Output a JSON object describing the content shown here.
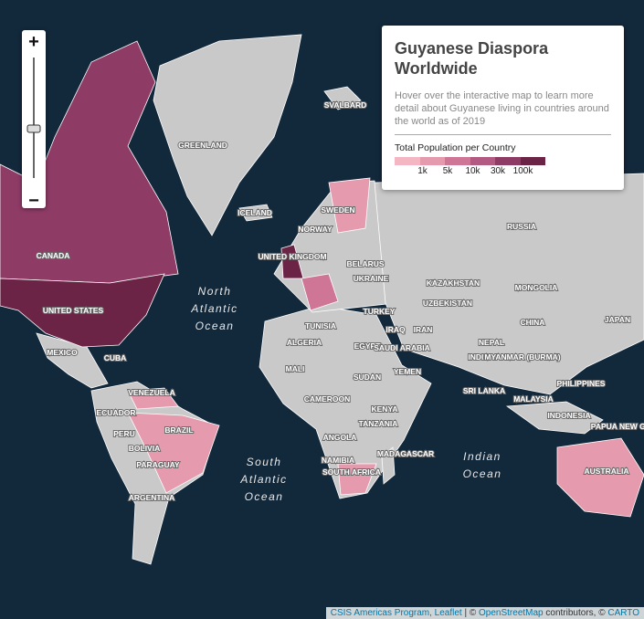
{
  "panel": {
    "title": "Guyanese Diaspora Worldwide",
    "description": "Hover over the interactive map to learn more detail about Guyanese living in countries around the world as of 2019",
    "legend": {
      "title": "Total Population per Country",
      "colors": [
        "#f4b6c2",
        "#e59aae",
        "#cf7596",
        "#b35a82",
        "#8e3b66",
        "#6b2446"
      ],
      "labels": [
        "1k",
        "5k",
        "10k",
        "30k",
        "100k"
      ]
    }
  },
  "zoom": {
    "in": "+",
    "out": "−"
  },
  "country_labels": [
    "SVALBARD",
    "GREENLAND",
    "ICELAND",
    "RUSSIA",
    "CANADA",
    "UNITED STATES",
    "MEXICO",
    "CUBA",
    "UNITED KINGDOM",
    "SWEDEN",
    "NORWAY",
    "BELARUS",
    "UKRAINE",
    "KAZAKHSTAN",
    "MONGOLIA",
    "UZBEKISTAN",
    "TURKEY",
    "CHINA",
    "JAPAN",
    "TUNISIA",
    "IRAQ",
    "IRAN",
    "ALGERIA",
    "EGYPT",
    "SAUDI ARABIA",
    "NEPAL",
    "INDIA",
    "MYANMAR (BURMA)",
    "MALI",
    "SUDAN",
    "YEMEN",
    "PHILIPPINES",
    "SRI LANKA",
    "MALAYSIA",
    "CAMEROON",
    "KENYA",
    "TANZANIA",
    "INDONESIA",
    "PAPUA NEW GUINEA",
    "VENEZUELA",
    "ECUADOR",
    "PERU",
    "BRAZIL",
    "BOLIVIA",
    "PARAGUAY",
    "ARGENTINA",
    "ANGOLA",
    "NAMIBIA",
    "SOUTH AFRICA",
    "MADAGASCAR",
    "AUSTRALIA"
  ],
  "ocean_labels": [
    [
      "North",
      "Atlantic",
      "Ocean"
    ],
    [
      "South",
      "Atlantic",
      "Ocean"
    ],
    [
      "Indian",
      "Ocean"
    ]
  ],
  "attribution": {
    "credit": "CSIS Americas Program, Leaflet",
    "osm": "OpenStreetMap",
    "contributors": "contributors, ©",
    "carto": "CARTO"
  }
}
